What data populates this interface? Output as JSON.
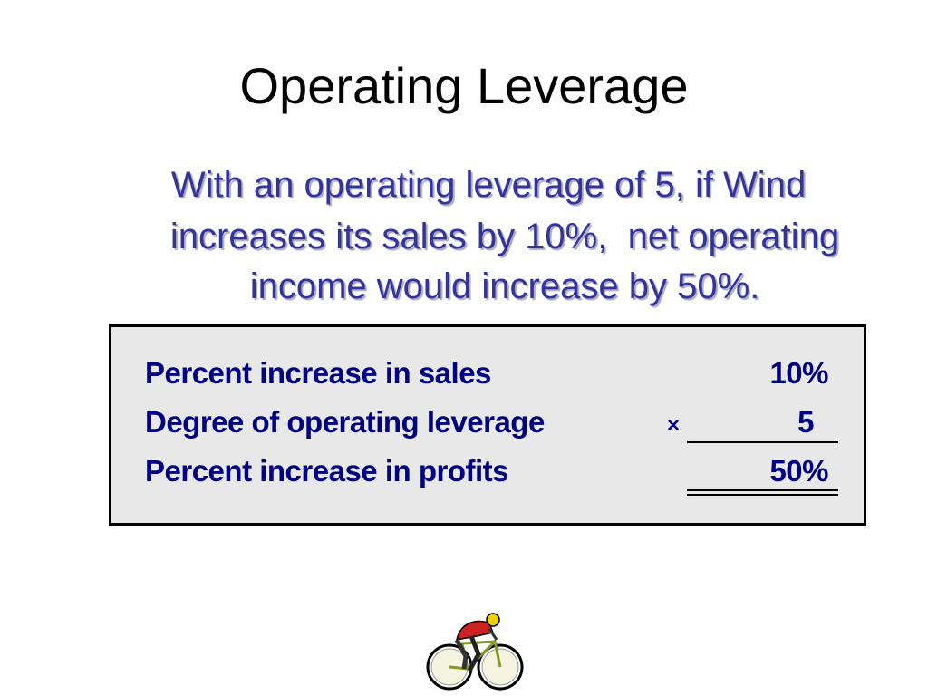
{
  "title": "Operating Leverage",
  "body": {
    "lines": [
      "With an operating leverage of 5, if Wind",
      "increases its sales by 10%,  net operating",
      "income would increase by 50%."
    ]
  },
  "table": {
    "rows": [
      {
        "label": "Percent increase in sales",
        "value": "10%"
      },
      {
        "label": "Degree of operating leverage",
        "operator": "×",
        "value": "5"
      },
      {
        "label": "Percent increase in profits",
        "value": "50%"
      }
    ]
  }
}
